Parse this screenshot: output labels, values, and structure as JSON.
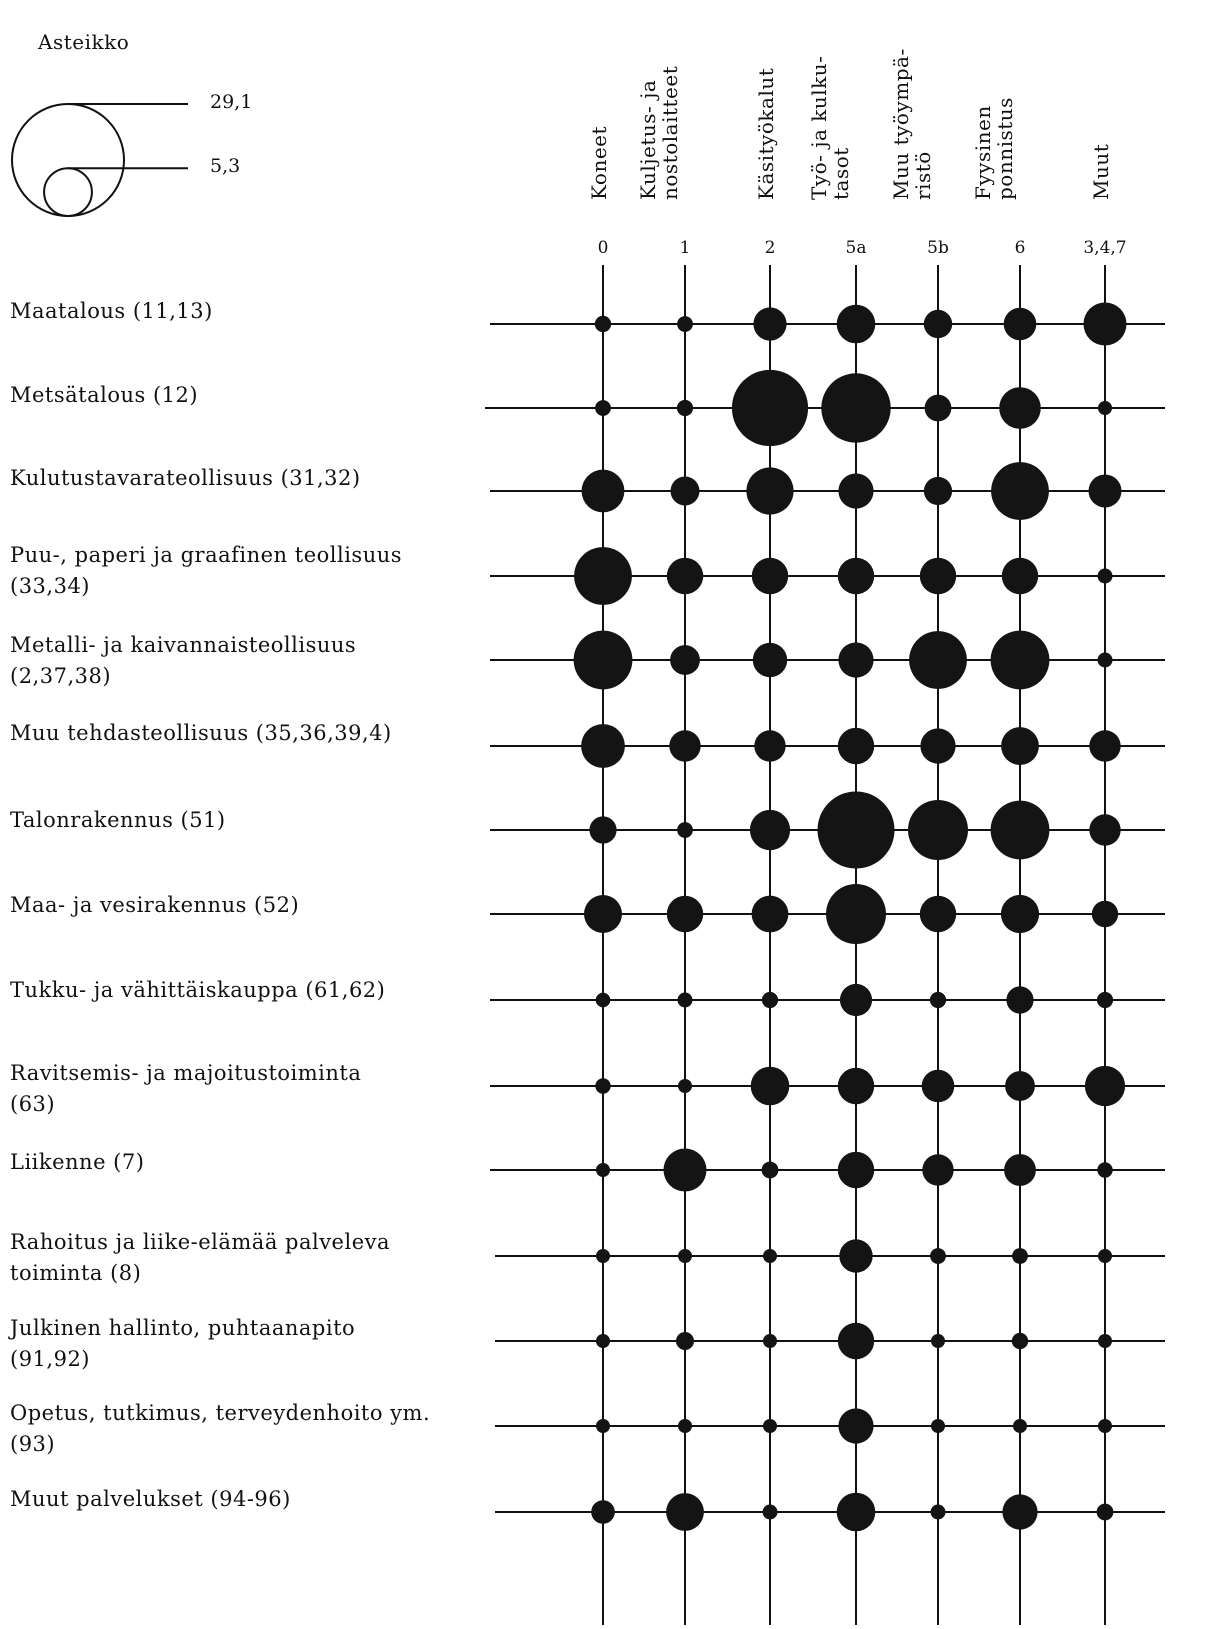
{
  "scale": {
    "title": "Asteikko",
    "large_label": "29,1",
    "small_label": "5,3",
    "large_value": 29.1,
    "small_value": 5.3
  },
  "chart_data": {
    "type": "bubble-grid",
    "title": "",
    "columns": [
      {
        "label": "Koneet",
        "code": "0"
      },
      {
        "label": "Kuljetus- ja\nnostolaitteet",
        "code": "1"
      },
      {
        "label": "Käsityökalut",
        "code": "2"
      },
      {
        "label": "Työ- ja kulku-\ntasot",
        "code": "5a"
      },
      {
        "label": "Muu työympä-\nristö",
        "code": "5b"
      },
      {
        "label": "Fyysinen\nponnistus",
        "code": "6"
      },
      {
        "label": "Muut",
        "code": "3,4,7"
      }
    ],
    "rows": [
      {
        "label": [
          "Maatalous (11,13)"
        ],
        "values": [
          2.2,
          2.0,
          8.9,
          12.0,
          6.5,
          8.6,
          15.0
        ]
      },
      {
        "label": [
          "Metsätalous (12)"
        ],
        "values": [
          2.0,
          2.1,
          47.0,
          39.0,
          5.8,
          14.0,
          1.5
        ]
      },
      {
        "label": [
          "Kulutustavarateollisuus (31,32)"
        ],
        "values": [
          14.8,
          6.8,
          18.0,
          10.0,
          6.4,
          27.0,
          8.8
        ]
      },
      {
        "label": [
          "Puu-, paperi ja graafinen teollisuus",
          "(33,34)"
        ],
        "values": [
          27.0,
          10.7,
          10.7,
          10.7,
          10.7,
          10.7,
          1.8
        ]
      },
      {
        "label": [
          "Metalli- ja kaivannaisteollisuus",
          "(2,37,38)"
        ],
        "values": [
          28.0,
          7.2,
          9.6,
          10.0,
          27.0,
          28.0,
          1.8
        ]
      },
      {
        "label": [
          "Muu tehdasteollisuus (35,36,39,4)"
        ],
        "values": [
          15.5,
          8.0,
          8.0,
          10.7,
          10.0,
          11.5,
          8.0
        ]
      },
      {
        "label": [
          "Talonrakennus (51)"
        ],
        "values": [
          6.0,
          2.0,
          13.0,
          48.0,
          29.1,
          28.0,
          8.0
        ]
      },
      {
        "label": [
          "Maa- ja vesirakennus (52)"
        ],
        "values": [
          11.7,
          10.7,
          11.0,
          29.1,
          10.7,
          11.8,
          5.6
        ]
      },
      {
        "label": [
          "Tukku- ja vähittäiskauppa (61,62)"
        ],
        "values": [
          1.7,
          1.8,
          2.1,
          8.4,
          2.1,
          6.0,
          2.1
        ]
      },
      {
        "label": [
          "Ravitsemis- ja majoitustoiminta",
          "(63)"
        ],
        "values": [
          1.9,
          0.7,
          12.0,
          10.7,
          8.6,
          7.2,
          13.0
        ]
      },
      {
        "label": [
          "Liikenne (7)"
        ],
        "values": [
          0.9,
          15.0,
          2.3,
          10.7,
          8.0,
          8.2,
          1.9
        ]
      },
      {
        "label": [
          "Rahoitus ja liike-elämää palveleva",
          "toiminta (8)"
        ],
        "values": [
          0.8,
          0.7,
          0.7,
          9.0,
          2.0,
          2.0,
          0.6
        ]
      },
      {
        "label": [
          "Julkinen hallinto, puhtaanapito",
          "(91,92)"
        ],
        "values": [
          0.9,
          2.6,
          0.9,
          10.7,
          1.6,
          2.2,
          1.3
        ]
      },
      {
        "label": [
          "Opetus, tutkimus, terveydenhoito ym.",
          "(93)"
        ],
        "values": [
          0.9,
          1.3,
          0.9,
          10.0,
          1.3,
          1.6,
          1.3
        ]
      },
      {
        "label": [
          "Muut palvelukset (94-96)"
        ],
        "values": [
          4.5,
          11.5,
          1.8,
          12.0,
          1.8,
          10.0,
          2.3
        ]
      }
    ],
    "legend": "top-left"
  }
}
